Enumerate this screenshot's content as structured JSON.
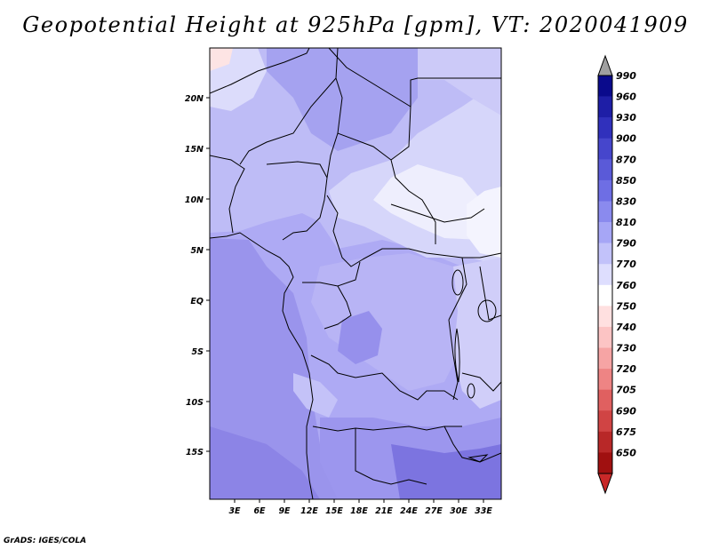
{
  "title": "Geopotential Height at 925hPa [gpm], VT: 2020041909",
  "credit": "GrADS: IGES/COLA",
  "map": {
    "lon_labels": [
      "3E",
      "6E",
      "9E",
      "12E",
      "15E",
      "18E",
      "21E",
      "24E",
      "27E",
      "30E",
      "33E"
    ],
    "lat_labels": [
      "20N",
      "15N",
      "10N",
      "5N",
      "EQ",
      "5S",
      "10S",
      "15S"
    ]
  },
  "colorbar": {
    "levels": [
      "990",
      "960",
      "930",
      "900",
      "870",
      "850",
      "830",
      "810",
      "790",
      "770",
      "760",
      "750",
      "740",
      "730",
      "720",
      "705",
      "690",
      "675",
      "650"
    ],
    "colors": [
      "#0a0a8c",
      "#1e1ea6",
      "#3030bc",
      "#4646cc",
      "#5a5ad8",
      "#6e6ee4",
      "#8a8aee",
      "#a6a6f6",
      "#c2c2fa",
      "#dedefe",
      "#ffffff",
      "#ffe0e0",
      "#fcc4c4",
      "#f6a4a4",
      "#ee8484",
      "#e06060",
      "#d04444",
      "#b82828",
      "#a01010"
    ],
    "upper_arrow_color": "#a0a0a0",
    "lower_arrow_color": "#c82828"
  }
}
